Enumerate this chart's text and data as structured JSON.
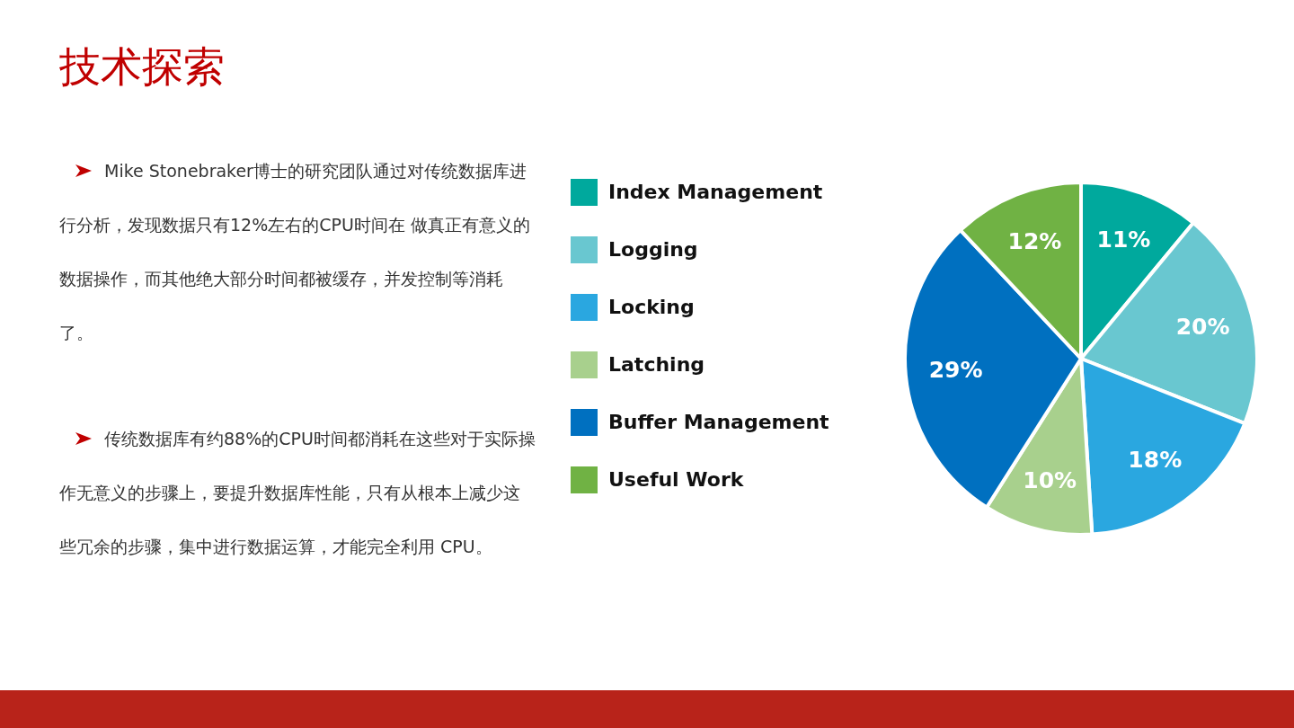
{
  "chart_data": {
    "type": "pie",
    "title": "技术探索",
    "categories": [
      "Index Management",
      "Logging",
      "Locking",
      "Latching",
      "Buffer Management",
      "Useful Work"
    ],
    "values": [
      11,
      20,
      18,
      10,
      29,
      12
    ],
    "colors": [
      "#00a99d",
      "#69c7d0",
      "#2aa7e0",
      "#a8d08d",
      "#0070c0",
      "#70b244"
    ],
    "value_labels": [
      "11%",
      "20%",
      "18%",
      "10%",
      "29%",
      "12%"
    ],
    "legend": "left",
    "annotations": [
      "Mike Stonebraker博士的研究团队通过对传统数据库进行分析，发现数据只有12%左右的CPU时间在 做真正有意义的数据操作，而其他绝大部分时间都被缓存，并发控制等消耗了。",
      "传统数据库有约88%的CPU时间都消耗在这些对于实际操作无意义的步骤上，要提升数据库性能，只有从根本上减少这些冗余的步骤，集中进行数据运算，才能完全利用 CPU。"
    ]
  }
}
